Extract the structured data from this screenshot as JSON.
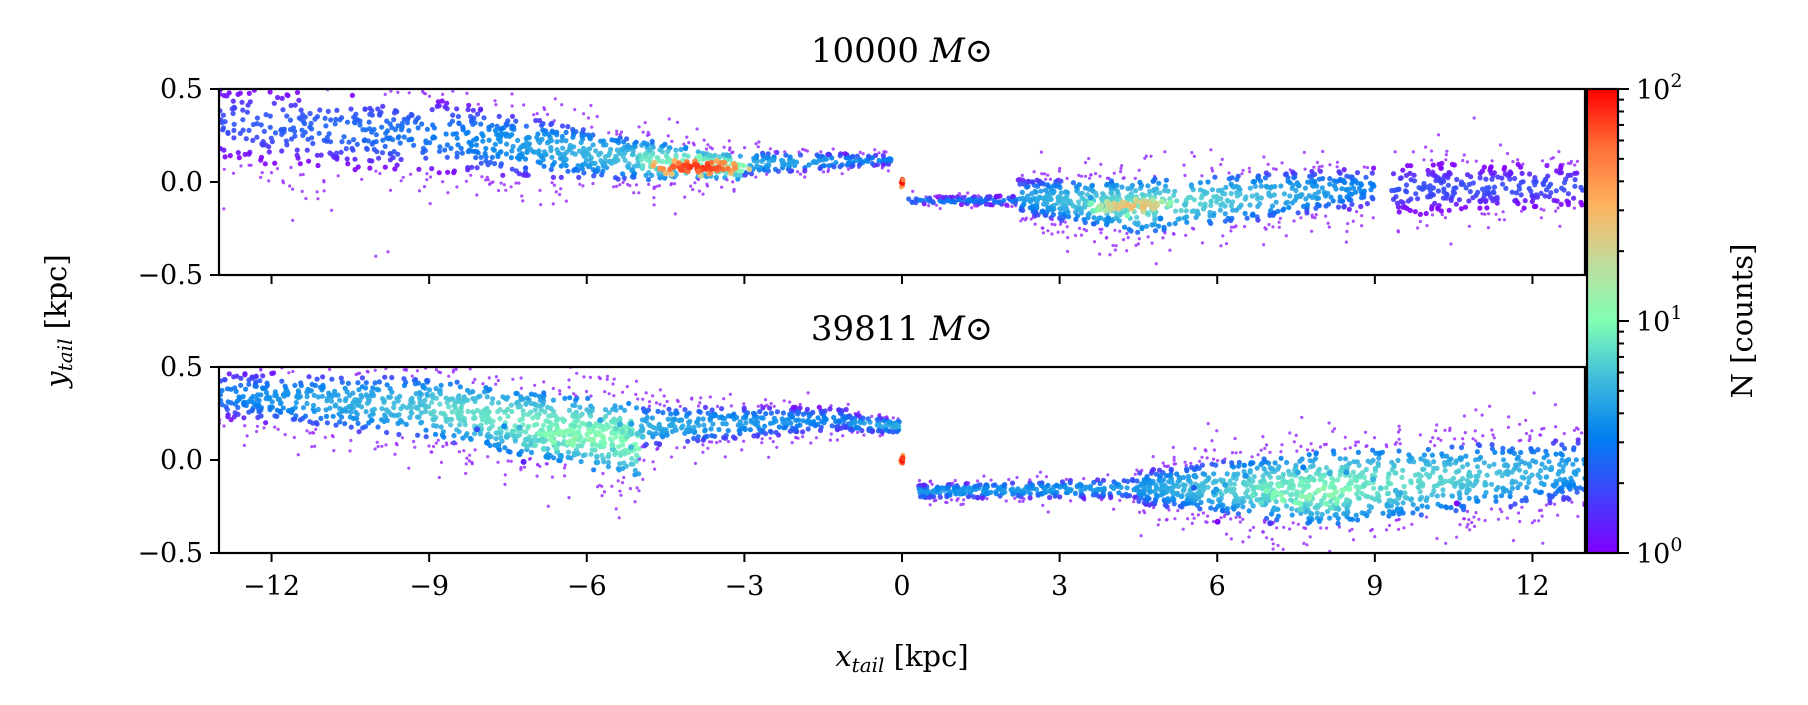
{
  "chart_data": {
    "type": "heatmap",
    "xlabel": "x_tail [kpc]",
    "ylabel": "y_tail [kpc]",
    "xlim": [
      -13,
      13
    ],
    "xticks": [
      -12,
      -9,
      -6,
      -3,
      0,
      3,
      6,
      9,
      12
    ],
    "xtick_labels": [
      "−12",
      "−9",
      "−6",
      "−3",
      "0",
      "3",
      "6",
      "9",
      "12"
    ],
    "panels": [
      {
        "title_value": "10000",
        "title_unit": "M⊙",
        "ylim": [
          -0.5,
          0.5
        ],
        "yticks": [
          0.5,
          0.0,
          -0.5
        ],
        "ytick_labels": [
          "0.5",
          "0.0",
          "−0.5"
        ],
        "segments": [
          {
            "x0": -13.0,
            "x1": -8.5,
            "y0": 0.32,
            "y1": 0.24,
            "h0": 0.24,
            "h1": 0.22,
            "c0": 2,
            "c1": 3,
            "n": 380
          },
          {
            "x0": -8.5,
            "x1": -5.0,
            "y0": 0.24,
            "y1": 0.12,
            "h0": 0.22,
            "h1": 0.12,
            "c0": 3,
            "c1": 6,
            "n": 420
          },
          {
            "x0": -5.0,
            "x1": -3.0,
            "y0": 0.12,
            "y1": 0.08,
            "h0": 0.12,
            "h1": 0.07,
            "c0": 8,
            "c1": 11,
            "n": 220
          },
          {
            "x0": -3.0,
            "x1": -0.1,
            "y0": 0.1,
            "y1": 0.12,
            "h0": 0.07,
            "h1": 0.03,
            "c0": 5,
            "c1": 3,
            "n": 170
          },
          {
            "x0": 0.1,
            "x1": 2.2,
            "y0": -0.1,
            "y1": -0.1,
            "h0": 0.02,
            "h1": 0.03,
            "c0": 3,
            "c1": 3,
            "n": 110
          },
          {
            "x0": 2.2,
            "x1": 4.5,
            "y0": -0.08,
            "y1": -0.13,
            "h0": 0.1,
            "h1": 0.16,
            "c0": 4,
            "c1": 8,
            "n": 360
          },
          {
            "x0": 4.5,
            "x1": 9.0,
            "y0": -0.13,
            "y1": -0.03,
            "h0": 0.16,
            "h1": 0.12,
            "c0": 8,
            "c1": 3,
            "n": 420
          },
          {
            "x0": 9.3,
            "x1": 13.0,
            "y0": -0.04,
            "y1": -0.02,
            "h0": 0.16,
            "h1": 0.12,
            "c0": 2,
            "c1": 2,
            "n": 300
          }
        ],
        "peaks": [
          {
            "x": -3.9,
            "y": 0.08,
            "dx": 0.9,
            "dy": 0.04,
            "count": 80
          },
          {
            "x": 4.4,
            "y": -0.13,
            "dx": 0.8,
            "dy": 0.05,
            "count": 28
          },
          {
            "x": 0.0,
            "y": 0.0,
            "dx": 0.03,
            "dy": 0.03,
            "count": 100
          }
        ]
      },
      {
        "title_value": "39811",
        "title_unit": "M⊙",
        "ylim": [
          -0.5,
          0.5
        ],
        "yticks": [
          0.5,
          0.0,
          -0.5
        ],
        "ytick_labels": [
          "0.5",
          "0.0",
          "−0.5"
        ],
        "segments": [
          {
            "x0": -13.0,
            "x1": -9.0,
            "y0": 0.35,
            "y1": 0.28,
            "h0": 0.14,
            "h1": 0.18,
            "c0": 3,
            "c1": 6,
            "n": 420
          },
          {
            "x0": -9.0,
            "x1": -5.0,
            "y0": 0.28,
            "y1": 0.1,
            "h0": 0.18,
            "h1": 0.22,
            "c0": 7,
            "c1": 10,
            "n": 620
          },
          {
            "x0": -5.0,
            "x1": -1.0,
            "y0": 0.18,
            "y1": 0.22,
            "h0": 0.12,
            "h1": 0.07,
            "c0": 5,
            "c1": 3,
            "n": 360
          },
          {
            "x0": -1.0,
            "x1": -0.05,
            "y0": 0.2,
            "y1": 0.18,
            "h0": 0.05,
            "h1": 0.04,
            "c0": 4,
            "c1": 5,
            "n": 90
          },
          {
            "x0": 0.3,
            "x1": 4.5,
            "y0": -0.17,
            "y1": -0.15,
            "h0": 0.04,
            "h1": 0.06,
            "c0": 4,
            "c1": 4,
            "n": 300
          },
          {
            "x0": 4.5,
            "x1": 8.0,
            "y0": -0.15,
            "y1": -0.15,
            "h0": 0.1,
            "h1": 0.22,
            "c0": 4,
            "c1": 9,
            "n": 560
          },
          {
            "x0": 8.0,
            "x1": 13.0,
            "y0": -0.15,
            "y1": -0.05,
            "h0": 0.22,
            "h1": 0.18,
            "c0": 9,
            "c1": 4,
            "n": 620
          }
        ],
        "peaks": [
          {
            "x": -6.2,
            "y": 0.12,
            "dx": 1.5,
            "dy": 0.1,
            "count": 12
          },
          {
            "x": 7.8,
            "y": -0.18,
            "dx": 1.8,
            "dy": 0.12,
            "count": 12
          },
          {
            "x": 0.0,
            "y": 0.0,
            "dx": 0.03,
            "dy": 0.03,
            "count": 100
          }
        ]
      }
    ],
    "colorbar": {
      "label": "N [counts]",
      "scale": "log",
      "cmap": "rainbow",
      "range": [
        1,
        100
      ],
      "ticks": [
        {
          "value": 1,
          "label": "10",
          "exp": "0"
        },
        {
          "value": 10,
          "label": "10",
          "exp": "1"
        },
        {
          "value": 100,
          "label": "10",
          "exp": "2"
        }
      ]
    }
  }
}
